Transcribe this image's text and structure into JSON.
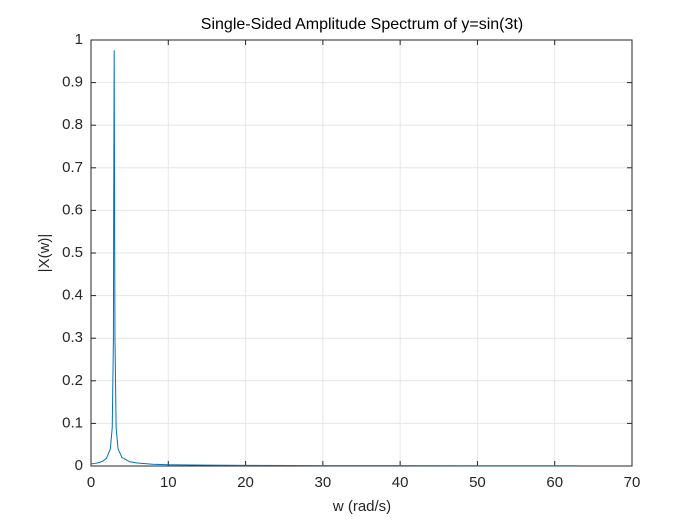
{
  "chart_data": {
    "type": "line",
    "title": "Single-Sided Amplitude Spectrum of y=sin(3t)",
    "x_label": "w (rad/s)",
    "y_label": "|X(w)|",
    "x": [
      0,
      0.5,
      1,
      1.5,
      2,
      2.5,
      2.75,
      2.9,
      2.95,
      3.0,
      3.05,
      3.1,
      3.25,
      3.5,
      4,
      5,
      6,
      8,
      10,
      15,
      20,
      30,
      40,
      50,
      63
    ],
    "values": [
      0.005,
      0.006,
      0.008,
      0.011,
      0.018,
      0.04,
      0.09,
      0.3,
      0.72,
      0.975,
      0.6,
      0.3,
      0.09,
      0.04,
      0.02,
      0.01,
      0.007,
      0.004,
      0.003,
      0.002,
      0.0015,
      0.001,
      0.0008,
      0.0006,
      0.0005
    ],
    "color": "#0072bd",
    "xlim": [
      0,
      70
    ],
    "xticks": [
      0,
      10,
      20,
      30,
      40,
      50,
      60,
      70
    ],
    "ylim": [
      0,
      1
    ],
    "yticks": [
      0,
      0.1,
      0.2,
      0.3,
      0.4,
      0.5,
      0.6,
      0.7,
      0.8,
      0.9,
      1
    ],
    "grid": true
  }
}
